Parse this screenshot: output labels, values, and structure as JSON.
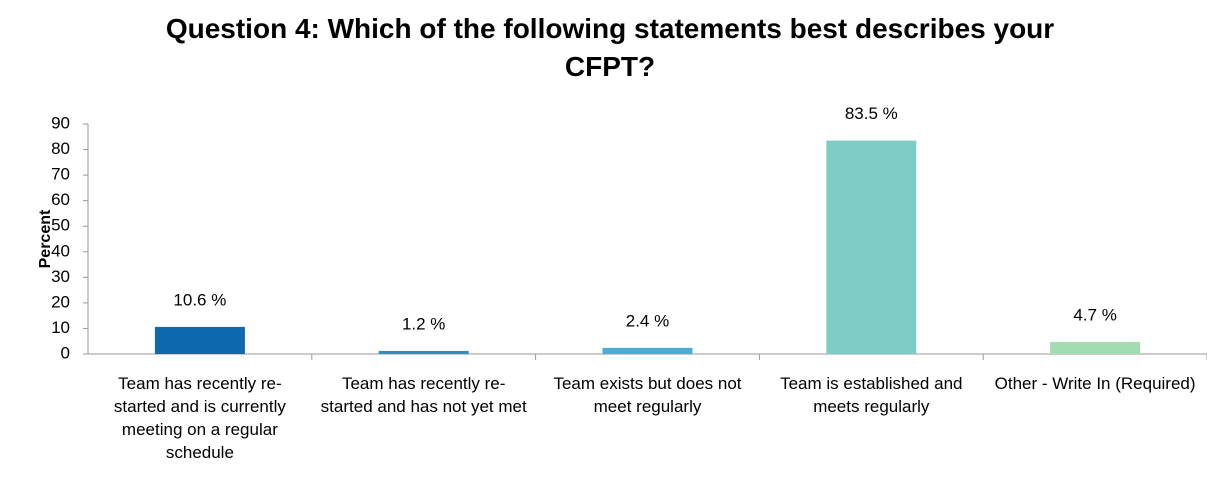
{
  "chart_data": {
    "type": "bar",
    "title": "Question 4: Which of the following statements best describes your CFPT?",
    "y_label": "Percent",
    "categories": [
      "Team has recently re-started and is currently meeting on a regular schedule",
      "Team has recently re-started and has not yet met",
      "Team exists but does not meet regularly",
      "Team is established and meets regularly",
      "Other - Write In (Required)"
    ],
    "values": [
      10.6,
      1.2,
      2.4,
      83.5,
      4.7
    ],
    "value_labels": [
      "10.6 %",
      "1.2 %",
      "2.4 %",
      "83.5 %",
      "4.7 %"
    ],
    "colors": [
      "#0e6aad",
      "#2a8fc2",
      "#4aaed3",
      "#7ecdc4",
      "#a3dcb0"
    ],
    "ylim": [
      0,
      90
    ],
    "yticks": [
      0,
      10,
      20,
      30,
      40,
      50,
      60,
      70,
      80,
      90
    ],
    "grid": false
  }
}
